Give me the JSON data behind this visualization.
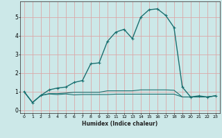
{
  "xlabel": "Humidex (Indice chaleur)",
  "ylabel": "",
  "background_color": "#cce8e8",
  "grid_color": "#dba8a8",
  "line_color": "#1a7070",
  "xlim": [
    -0.5,
    23.5
  ],
  "ylim": [
    -0.15,
    5.85
  ],
  "xticks": [
    0,
    1,
    2,
    3,
    4,
    5,
    6,
    7,
    8,
    9,
    10,
    11,
    12,
    13,
    14,
    15,
    16,
    17,
    18,
    19,
    20,
    21,
    22,
    23
  ],
  "yticks": [
    0,
    1,
    2,
    3,
    4,
    5
  ],
  "main_x": [
    0,
    1,
    2,
    3,
    4,
    5,
    6,
    7,
    8,
    9,
    10,
    11,
    12,
    13,
    14,
    15,
    16,
    17,
    18,
    19,
    20,
    21,
    22,
    23
  ],
  "main_y": [
    1.0,
    0.42,
    0.8,
    1.1,
    1.2,
    1.25,
    1.5,
    1.6,
    2.5,
    2.55,
    3.7,
    4.2,
    4.35,
    3.85,
    5.0,
    5.4,
    5.45,
    5.1,
    4.45,
    1.25,
    0.72,
    0.78,
    0.72,
    0.78
  ],
  "line2_x": [
    0,
    1,
    2,
    3,
    4,
    5,
    6,
    7,
    8,
    9,
    10,
    11,
    12,
    13,
    14,
    15,
    16,
    17,
    18,
    19,
    20,
    21,
    22,
    23
  ],
  "line2_y": [
    1.0,
    0.42,
    0.8,
    0.9,
    0.9,
    0.93,
    0.97,
    0.97,
    0.97,
    0.97,
    1.05,
    1.05,
    1.05,
    1.05,
    1.1,
    1.1,
    1.1,
    1.1,
    1.08,
    0.72,
    0.72,
    0.72,
    0.72,
    0.78
  ],
  "line3_x": [
    0,
    1,
    2,
    3,
    4,
    5,
    6,
    7,
    8,
    9,
    10,
    11,
    12,
    13,
    14,
    15,
    16,
    17,
    18,
    19,
    20,
    21,
    22,
    23
  ],
  "line3_y": [
    1.0,
    0.42,
    0.8,
    0.88,
    0.85,
    0.88,
    0.83,
    0.85,
    0.85,
    0.85,
    0.85,
    0.87,
    0.87,
    0.87,
    0.87,
    0.87,
    0.87,
    0.87,
    0.87,
    0.72,
    0.72,
    0.72,
    0.72,
    0.78
  ]
}
